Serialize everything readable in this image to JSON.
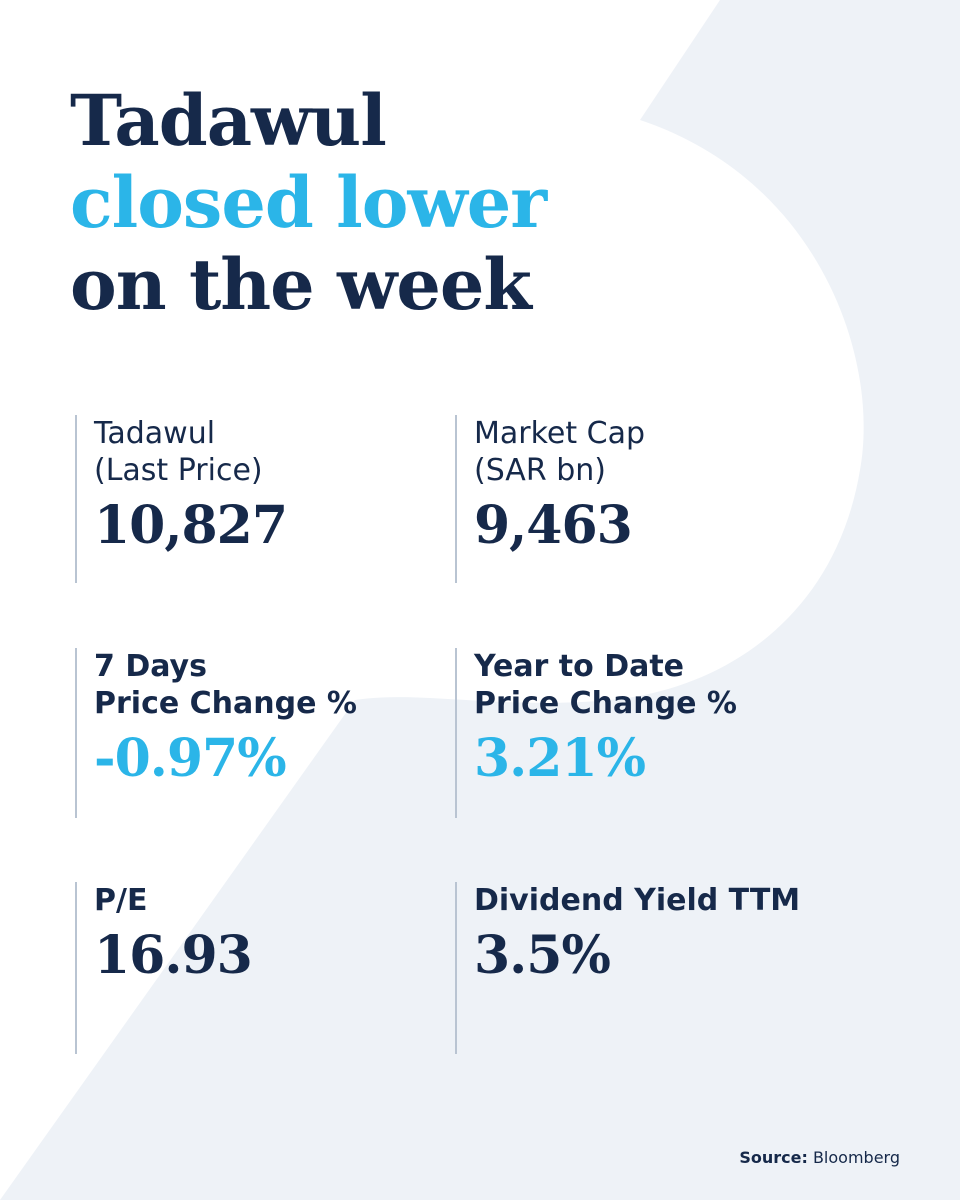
{
  "headline": {
    "line1": "Tadawul",
    "line2": "closed lower",
    "line3": "on the week"
  },
  "stats": {
    "last_price": {
      "label1": "Tadawul",
      "label2": "(Last Price)",
      "value": "10,827"
    },
    "market_cap": {
      "label1": "Market Cap",
      "label2": "(SAR bn)",
      "value": "9,463"
    },
    "seven_day": {
      "label1": "7 Days",
      "label2": "Price Change %",
      "value": "-0.97%"
    },
    "ytd": {
      "label1": "Year to Date",
      "label2": "Price Change %",
      "value": "3.21%"
    },
    "pe": {
      "label1": "P/E",
      "value": "16.93"
    },
    "dividend": {
      "label1": "Dividend Yield TTM",
      "value": "3.5%"
    }
  },
  "source": {
    "label": "Source:",
    "name": "Bloomberg"
  },
  "colors": {
    "navy": "#16294a",
    "accent_blue": "#2bb5e8",
    "background": "#eef2f7",
    "shape": "#ffffff",
    "divider": "#b9c4d2"
  }
}
